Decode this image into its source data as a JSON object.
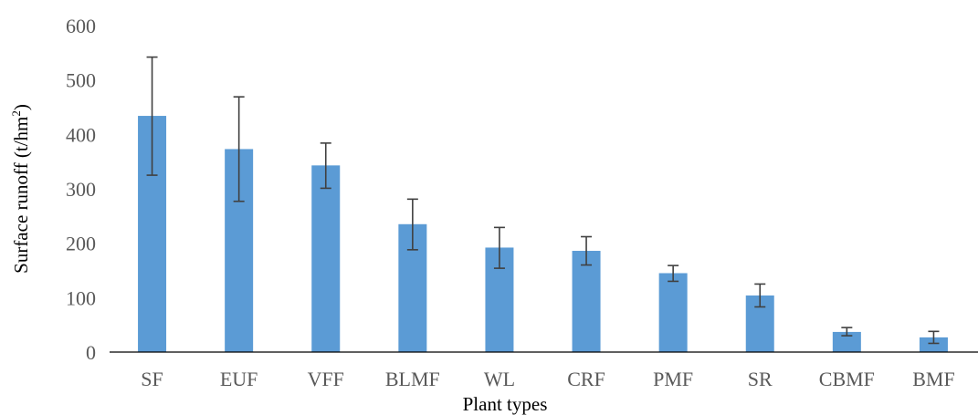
{
  "chart_data": {
    "type": "bar",
    "categories": [
      "SF",
      "EUF",
      "VFF",
      "BLMF",
      "WL",
      "CRF",
      "PMF",
      "SR",
      "CBMF",
      "BMF"
    ],
    "series": [
      {
        "values": [
          434,
          373,
          343,
          235,
          192,
          186,
          145,
          104,
          37,
          27
        ],
        "error_low": [
          325,
          277,
          301,
          188,
          154,
          160,
          130,
          83,
          30,
          16
        ],
        "error_high": [
          542,
          469,
          384,
          281,
          229,
          212,
          159,
          125,
          45,
          38
        ]
      }
    ],
    "xlabel": "Plant types",
    "ylabel": "Surface runoff (t/hm",
    "ylabel_superscript": "2",
    "ylabel_suffix": ")",
    "ylim": [
      0,
      600
    ],
    "yticks": [
      0,
      100,
      200,
      300,
      400,
      500,
      600
    ],
    "grid": false,
    "bar_color": "#5b9bd5",
    "error_bar_color": "#404040",
    "axis_color": "#000000"
  }
}
